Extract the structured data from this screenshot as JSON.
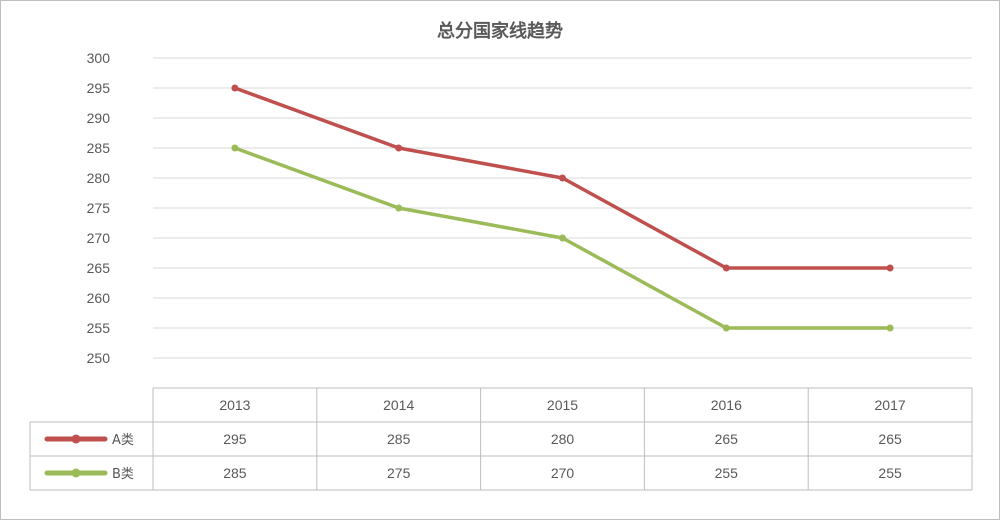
{
  "chart_data": {
    "type": "line",
    "title": "总分国家线趋势",
    "categories": [
      "2013",
      "2014",
      "2015",
      "2016",
      "2017"
    ],
    "series": [
      {
        "name": "A类",
        "values": [
          295,
          285,
          280,
          265,
          265
        ],
        "color": "#c0504d"
      },
      {
        "name": "B类",
        "values": [
          285,
          275,
          270,
          255,
          255
        ],
        "color": "#9bbb59"
      }
    ],
    "y_ticks": [
      "300",
      "295",
      "290",
      "285",
      "280",
      "275",
      "270",
      "265",
      "260",
      "255",
      "250"
    ],
    "ylim": [
      250,
      300
    ],
    "grid": true,
    "data_table": true,
    "colors": {
      "grid": "#d9d9d9",
      "axis_text": "#595959",
      "border": "#bdbdbd"
    }
  }
}
